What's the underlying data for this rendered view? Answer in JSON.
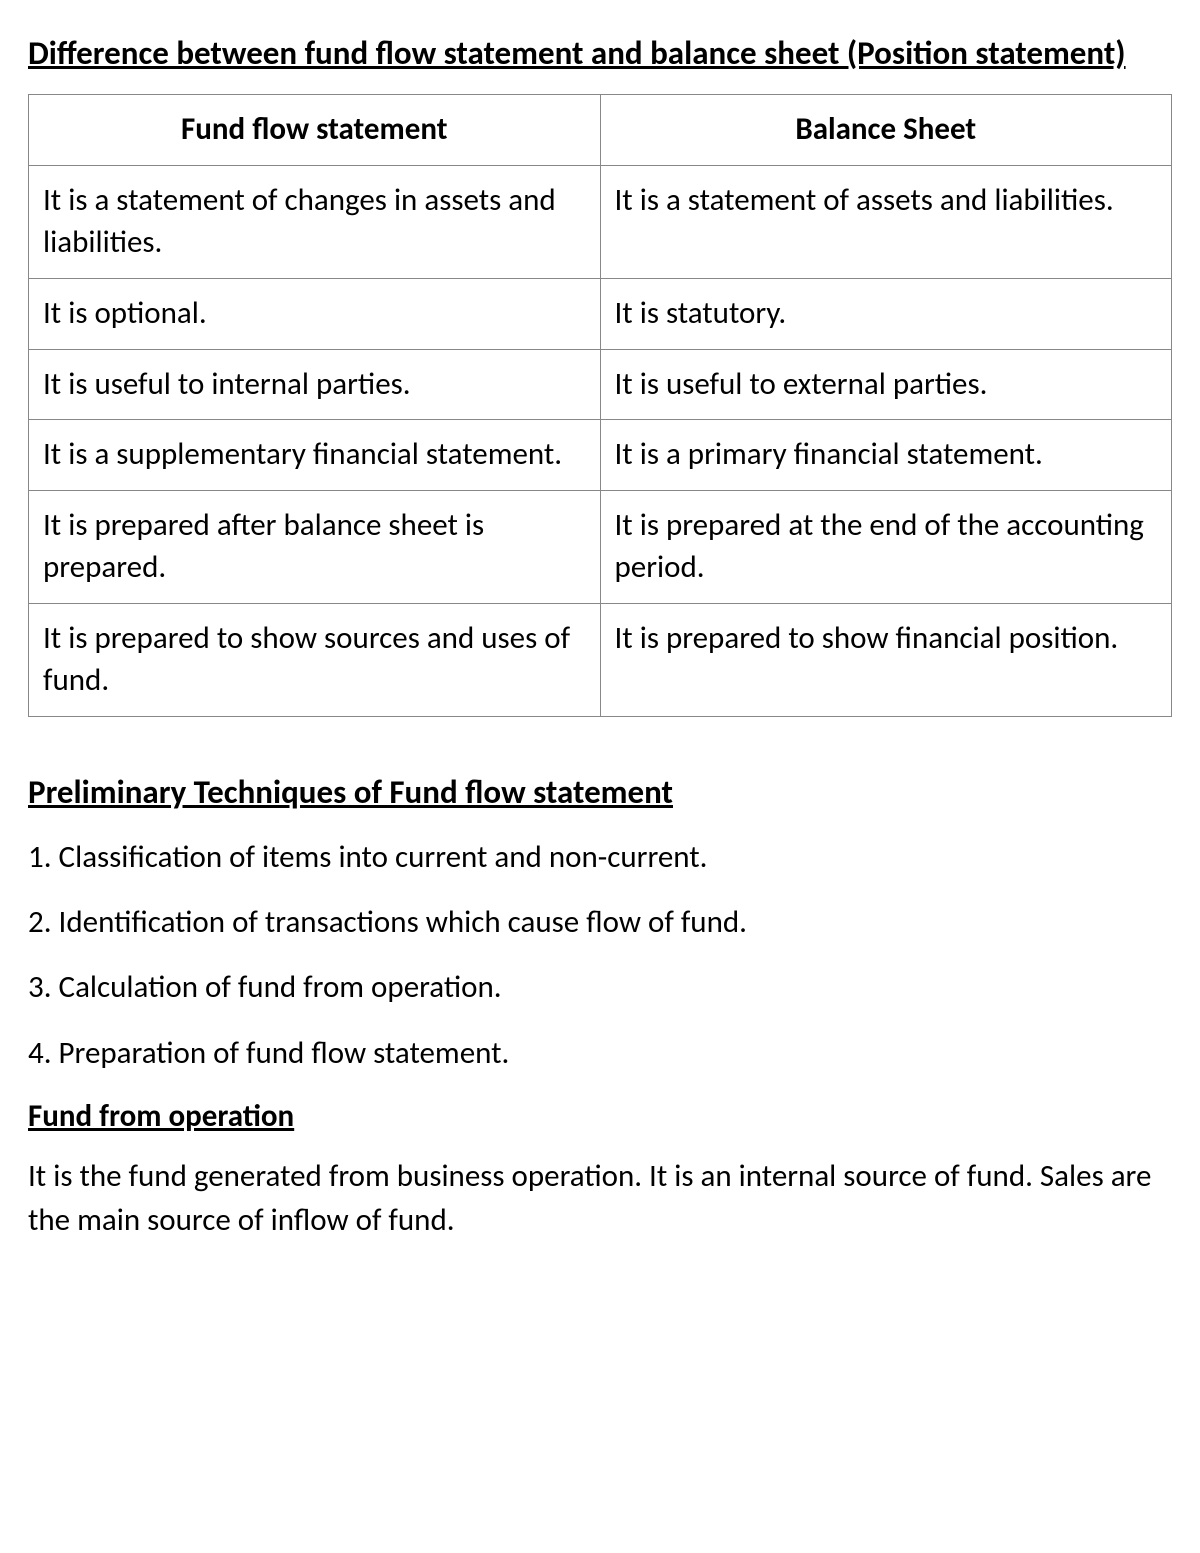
{
  "heading": "Difference between fund flow statement and balance sheet (Position statement)",
  "table": {
    "headers": {
      "left": "Fund flow statement",
      "right": "Balance Sheet"
    },
    "rows": [
      {
        "left": "It is a statement of changes in assets and liabilities.",
        "right": "It is a statement of assets and liabilities."
      },
      {
        "left": "It is optional.",
        "right": "It is statutory."
      },
      {
        "left": "It is useful to internal parties.",
        "right": "It is useful to external parties."
      },
      {
        "left": "It is a supplementary financial statement.",
        "right": "It is a primary financial statement."
      },
      {
        "left": "It is prepared after balance sheet is prepared.",
        "right": "It is prepared at the end of the accounting period."
      },
      {
        "left": "It is prepared to show sources and uses of fund.",
        "right": "It is prepared to show financial position."
      }
    ]
  },
  "section2_heading": "Preliminary Techniques of Fund flow statement",
  "techniques": [
    "1. Classification of items into current and non-current.",
    "2. Identification of transactions which cause flow of fund.",
    "3. Calculation of fund from operation.",
    "4. Preparation of fund flow statement."
  ],
  "sub_heading": "Fund from operation",
  "paragraph": "It is the fund generated from business operation. It is an internal source of fund. Sales are the main source of inflow of fund.",
  "colors": {
    "text": "#000000",
    "background": "#ffffff",
    "border": "#888888"
  },
  "typography": {
    "font_family": "Calibri",
    "heading_fontsize": 33,
    "body_fontsize": 31
  }
}
